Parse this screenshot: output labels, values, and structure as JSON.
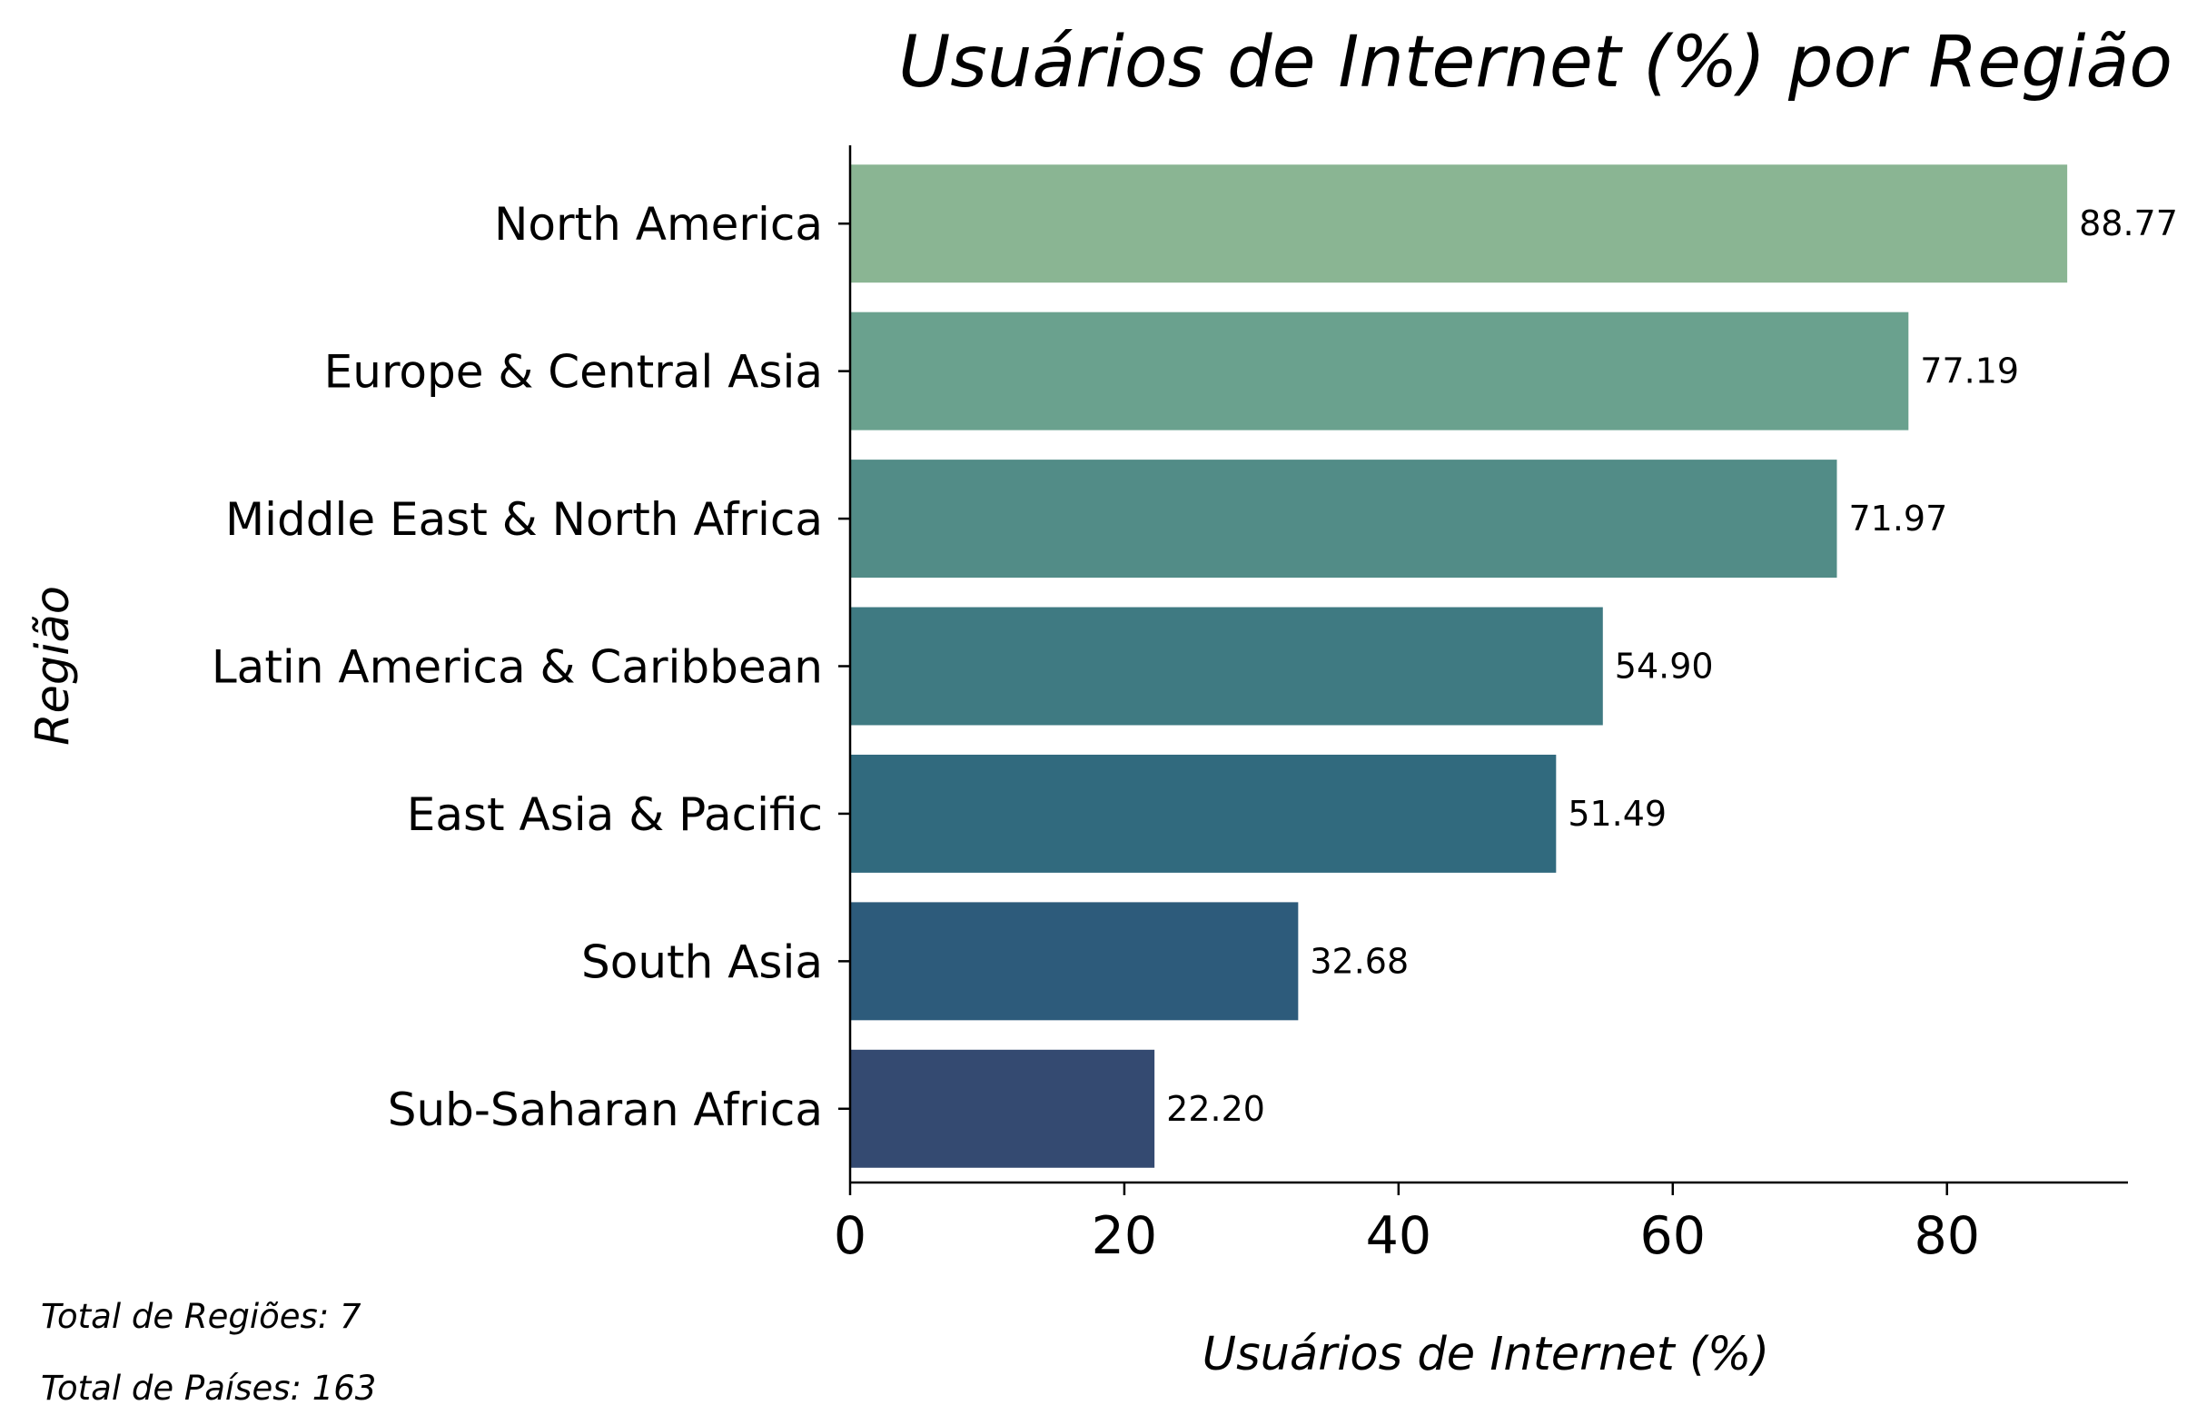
{
  "chart_data": {
    "type": "bar",
    "orientation": "horizontal",
    "title": "Usuários de Internet (%) por Região",
    "xlabel": "Usuários de Internet (%)",
    "ylabel": "Região",
    "categories": [
      "North America",
      "Europe & Central Asia",
      "Middle East & North Africa",
      "Latin America & Caribbean",
      "East Asia & Pacific",
      "South Asia",
      "Sub-Saharan Africa"
    ],
    "values": [
      88.77,
      77.19,
      71.97,
      54.9,
      51.49,
      32.68,
      22.2
    ],
    "value_labels": [
      "88.77",
      "77.19",
      "71.97",
      "54.90",
      "51.49",
      "32.68",
      "22.20"
    ],
    "colors": [
      "#8ab593",
      "#6aa18e",
      "#528c87",
      "#3f7a82",
      "#316a7e",
      "#2d5b7b",
      "#344a71"
    ],
    "xlim": [
      0,
      93.2
    ],
    "xticks": [
      0,
      20,
      40,
      60,
      80
    ],
    "xtick_labels": [
      "0",
      "20",
      "40",
      "60",
      "80"
    ],
    "grid": false,
    "legend": "none"
  },
  "notes": {
    "total_regions": "Total de Regiões: 7",
    "total_countries": "Total de Países: 163"
  }
}
